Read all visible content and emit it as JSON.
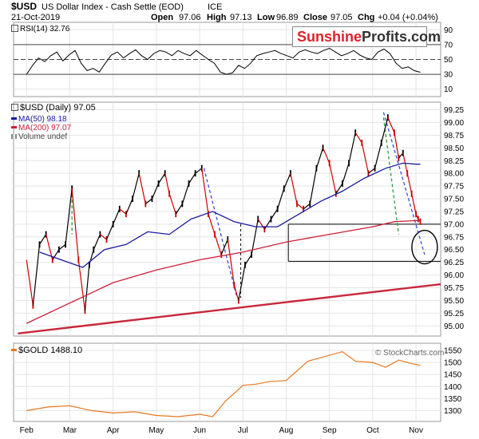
{
  "header": {
    "symbol": "$USD",
    "name": "US Dollar Index - Cash Settle (EOD)",
    "exchange": "ICE",
    "date": "21-Oct-2019",
    "open_label": "Open",
    "open": "97.06",
    "high_label": "High",
    "high": "97.13",
    "low_label": "Low",
    "low": "96.89",
    "close_label": "Close",
    "close": "97.05",
    "chg_label": "Chg",
    "chg": "+0.04 (+0.04%)",
    "watermark": "© StockCharts.com"
  },
  "logo": {
    "part1": "Sunshine",
    "part2": "Profits.com"
  },
  "colors": {
    "price": "#000000",
    "up": "#000000",
    "down": "#cc0000",
    "ma50": "#1a1aa0",
    "ma200": "#cc1f3a",
    "gold": "#e8781e",
    "trend": "#c8283c",
    "blue_dash": "#3a4fd8",
    "green_dash": "#2e9e3e"
  },
  "chart_data": [
    {
      "type": "line",
      "panel": "rsi",
      "legend": "RSI(14) 32.76",
      "ylim": [
        0,
        100
      ],
      "yticks": [
        10,
        30,
        50,
        70,
        90
      ],
      "reference_lines": [
        30,
        50,
        70
      ],
      "series": [
        {
          "name": "RSI(14)",
          "values": [
            30,
            42,
            52,
            47,
            55,
            60,
            48,
            56,
            62,
            45,
            35,
            38,
            33,
            45,
            56,
            60,
            52,
            58,
            63,
            55,
            50,
            58,
            62,
            60,
            55,
            62,
            58,
            55,
            62,
            56,
            50,
            45,
            33,
            30,
            32,
            42,
            38,
            45,
            55,
            58,
            60,
            62,
            58,
            55,
            52,
            60,
            63,
            60,
            58,
            62,
            65,
            60,
            55,
            58,
            62,
            56,
            52,
            50,
            60,
            64,
            58,
            45,
            38,
            40,
            35,
            32.76
          ]
        }
      ]
    },
    {
      "type": "line",
      "panel": "price",
      "legend": [
        "$USD (Daily) 97.05",
        "MA(50) 98.18",
        "MA(200) 97.07",
        "Volume undef"
      ],
      "ylim": [
        94.8,
        99.4
      ],
      "yticks": [
        95.0,
        95.25,
        95.5,
        95.75,
        96.0,
        96.25,
        96.5,
        96.75,
        97.0,
        97.25,
        97.5,
        97.75,
        98.0,
        98.25,
        98.5,
        98.75,
        99.0,
        99.25
      ],
      "ytick_labels": [
        "95.00",
        "95.25",
        "95.50",
        "95.75",
        "96.00",
        "96.25",
        "96.50",
        "96.75",
        "97.00",
        "97.25",
        "97.50",
        "97.75",
        "98.00",
        "98.25",
        "98.50",
        "98.75",
        "99.00",
        "99.25"
      ],
      "xticks": [
        "Feb",
        "Mar",
        "Apr",
        "May",
        "Jun",
        "Jul",
        "Aug",
        "Sep",
        "Oct",
        "Nov"
      ],
      "series": [
        {
          "name": "$USD (Daily)",
          "x": [
            0.0,
            0.15,
            0.3,
            0.45,
            0.6,
            0.75,
            0.9,
            1.05,
            1.2,
            1.35,
            1.45,
            1.55,
            1.7,
            1.85,
            2.0,
            2.15,
            2.3,
            2.45,
            2.6,
            2.75,
            2.9,
            3.05,
            3.2,
            3.3,
            3.45,
            3.6,
            3.75,
            3.9,
            4.05,
            4.2,
            4.35,
            4.5,
            4.65,
            4.8,
            4.9,
            5.05,
            5.2,
            5.35,
            5.5,
            5.65,
            5.8,
            5.95,
            6.1,
            6.25,
            6.4,
            6.55,
            6.7,
            6.85,
            7.0,
            7.15,
            7.3,
            7.45,
            7.6,
            7.75,
            7.9,
            8.05,
            8.2,
            8.35,
            8.5,
            8.6,
            8.7,
            8.8,
            8.9,
            9.0,
            9.05,
            9.1
          ],
          "values": [
            96.3,
            95.4,
            96.6,
            96.8,
            96.3,
            96.5,
            96.6,
            97.7,
            96.3,
            95.3,
            96.2,
            96.5,
            96.8,
            96.7,
            97.0,
            97.3,
            97.2,
            97.5,
            98.0,
            97.4,
            97.5,
            97.8,
            98.0,
            97.6,
            97.2,
            97.4,
            97.8,
            98.0,
            98.1,
            97.2,
            96.8,
            96.4,
            96.7,
            95.8,
            95.5,
            96.2,
            96.4,
            97.1,
            96.9,
            97.1,
            97.3,
            97.7,
            98.0,
            97.4,
            97.3,
            97.4,
            98.1,
            98.5,
            98.2,
            97.6,
            97.8,
            98.2,
            98.8,
            98.6,
            98.0,
            98.1,
            98.6,
            99.1,
            98.8,
            98.3,
            98.4,
            98.0,
            97.6,
            97.2,
            97.1,
            97.05
          ]
        },
        {
          "name": "MA(50)",
          "x": [
            0.3,
            0.8,
            1.3,
            1.8,
            2.3,
            2.8,
            3.3,
            3.8,
            4.3,
            4.8,
            5.3,
            5.8,
            6.3,
            6.8,
            7.3,
            7.8,
            8.3,
            8.7,
            9.0,
            9.1
          ],
          "values": [
            96.45,
            96.3,
            96.15,
            96.5,
            96.6,
            96.85,
            96.8,
            97.1,
            97.25,
            97.05,
            96.95,
            96.95,
            97.2,
            97.45,
            97.65,
            97.9,
            98.1,
            98.2,
            98.18,
            98.18
          ]
        },
        {
          "name": "MA(200)",
          "x": [
            0.0,
            1.0,
            2.0,
            3.0,
            4.0,
            5.0,
            6.0,
            7.0,
            8.0,
            8.5,
            9.0,
            9.1
          ],
          "values": [
            95.05,
            95.45,
            95.85,
            96.1,
            96.3,
            96.45,
            96.65,
            96.8,
            96.95,
            97.05,
            97.07,
            97.07
          ]
        }
      ]
    },
    {
      "type": "line",
      "panel": "gold",
      "legend": "$GOLD 1488.10",
      "ylim": [
        1255,
        1580
      ],
      "yticks": [
        1300,
        1350,
        1400,
        1450,
        1500,
        1550
      ],
      "xticks": [
        "Feb",
        "Mar",
        "Apr",
        "May",
        "Jun",
        "Jul",
        "Aug",
        "Sep",
        "Oct",
        "Nov"
      ],
      "series": [
        {
          "name": "$GOLD",
          "x": [
            0.0,
            0.5,
            1.0,
            1.5,
            2.0,
            2.5,
            3.0,
            3.5,
            4.0,
            4.3,
            4.6,
            5.0,
            5.3,
            5.6,
            6.0,
            6.5,
            7.0,
            7.3,
            7.6,
            8.0,
            8.3,
            8.6,
            8.9,
            9.1
          ],
          "values": [
            1300,
            1315,
            1320,
            1300,
            1290,
            1295,
            1280,
            1275,
            1285,
            1275,
            1340,
            1405,
            1410,
            1420,
            1425,
            1505,
            1530,
            1545,
            1505,
            1500,
            1480,
            1510,
            1495,
            1488
          ]
        }
      ]
    }
  ]
}
